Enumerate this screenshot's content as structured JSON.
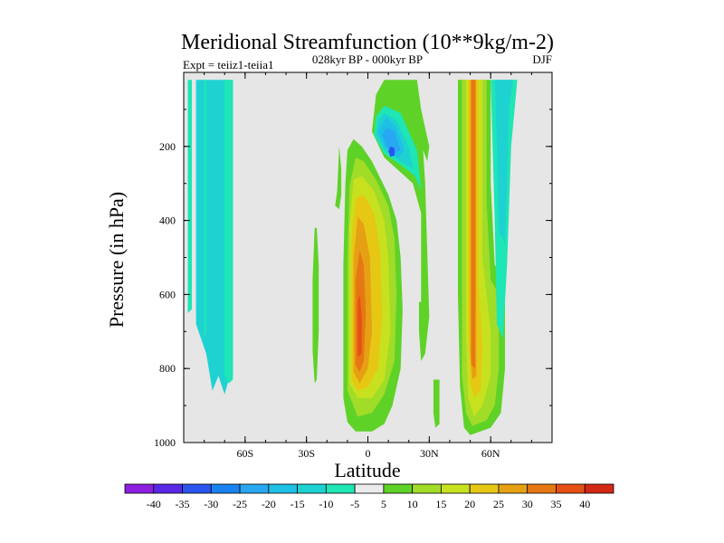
{
  "chart_data": {
    "type": "contour",
    "title": "Meridional Streamfunction (10**9kg/m-2)",
    "subtitle_left": "Expt = teiiz1-teiia1",
    "subtitle_center": "028kyr BP - 000kyr BP",
    "subtitle_right": "DJF",
    "xlabel": "Latitude",
    "ylabel": "Pressure (in hPa)",
    "xlim": [
      -90,
      90
    ],
    "ylim": [
      1000,
      0
    ],
    "y_inverted": true,
    "x_ticks": [
      {
        "value": -60,
        "label": "60S"
      },
      {
        "value": -30,
        "label": "30S"
      },
      {
        "value": 0,
        "label": "0"
      },
      {
        "value": 30,
        "label": "30N"
      },
      {
        "value": 60,
        "label": "60N"
      }
    ],
    "y_ticks": [
      {
        "value": 200,
        "label": "200"
      },
      {
        "value": 400,
        "label": "400"
      },
      {
        "value": 600,
        "label": "600"
      },
      {
        "value": 800,
        "label": "800"
      },
      {
        "value": 1000,
        "label": "1000"
      }
    ],
    "background_color": "#e6e6e6",
    "colorbar": {
      "labels": [
        "-40",
        "-35",
        "-30",
        "-25",
        "-20",
        "-15",
        "-10",
        "-5",
        "5",
        "10",
        "15",
        "20",
        "25",
        "30",
        "35",
        "40"
      ],
      "colors": [
        "#8c1fe0",
        "#5a28e6",
        "#2a55f0",
        "#1a82f0",
        "#28a8f0",
        "#1ec0e6",
        "#1ed2d2",
        "#1ee6b4",
        "#ebebeb",
        "#5fd228",
        "#a0dc28",
        "#c8e11e",
        "#e6c814",
        "#e6a014",
        "#e67814",
        "#e65014",
        "#d22814"
      ]
    },
    "regions": [
      {
        "name": "sh-polar-neg-band",
        "color": "#1ed2d2",
        "points": [
          [
            -88,
            20
          ],
          [
            -84,
            20
          ],
          [
            -84,
            680
          ],
          [
            -79,
            760
          ],
          [
            -76,
            860
          ],
          [
            -73,
            820
          ],
          [
            -70,
            870
          ],
          [
            -68,
            830
          ],
          [
            -66,
            820
          ],
          [
            -66,
            20
          ],
          [
            -88,
            20
          ]
        ]
      },
      {
        "name": "sh-polar-teal-edge",
        "color": "#1ee6b4",
        "points": [
          [
            -88,
            20
          ],
          [
            -86,
            20
          ],
          [
            -86,
            640
          ],
          [
            -88,
            650
          ]
        ]
      },
      {
        "name": "sh-polar-teal-east",
        "color": "#1ee6b4",
        "points": [
          [
            -70,
            20
          ],
          [
            -66,
            20
          ],
          [
            -66,
            830
          ],
          [
            -68,
            840
          ],
          [
            -70,
            820
          ]
        ]
      },
      {
        "name": "sh-polar-teal-mid",
        "color": "#1ee6b4",
        "points": [
          [
            -80,
            20
          ],
          [
            -79,
            20
          ],
          [
            -79,
            700
          ],
          [
            -80,
            720
          ]
        ]
      },
      {
        "name": "ns-green-left",
        "color": "#5fd228",
        "points": [
          [
            -27,
            750
          ],
          [
            -27,
            560
          ],
          [
            -26,
            420
          ],
          [
            -25,
            420
          ],
          [
            -24,
            520
          ],
          [
            -24,
            700
          ],
          [
            -25,
            830
          ],
          [
            -26,
            840
          ]
        ]
      },
      {
        "name": "ns-green-mid",
        "color": "#5fd228",
        "points": [
          [
            -16,
            360
          ],
          [
            -15,
            320
          ],
          [
            -14,
            200
          ],
          [
            -13,
            260
          ],
          [
            -13,
            330
          ],
          [
            -14,
            370
          ]
        ]
      },
      {
        "name": "tropical-pos-10",
        "color": "#5fd228",
        "points": [
          [
            -12,
            880
          ],
          [
            -12,
            520
          ],
          [
            -11,
            300
          ],
          [
            -10,
            210
          ],
          [
            -7,
            180
          ],
          [
            -3,
            200
          ],
          [
            2,
            240
          ],
          [
            10,
            330
          ],
          [
            14,
            400
          ],
          [
            16,
            500
          ],
          [
            17,
            640
          ],
          [
            16,
            800
          ],
          [
            12,
            900
          ],
          [
            8,
            950
          ],
          [
            2,
            970
          ],
          [
            -6,
            970
          ],
          [
            -10,
            945
          ]
        ]
      },
      {
        "name": "tropical-pos-15",
        "color": "#a0dc28",
        "points": [
          [
            -10,
            860
          ],
          [
            -10,
            520
          ],
          [
            -9,
            310
          ],
          [
            -6,
            230
          ],
          [
            -2,
            240
          ],
          [
            4,
            290
          ],
          [
            10,
            360
          ],
          [
            13,
            450
          ],
          [
            14,
            600
          ],
          [
            13,
            780
          ],
          [
            8,
            870
          ],
          [
            2,
            920
          ],
          [
            -5,
            930
          ]
        ]
      },
      {
        "name": "tropical-pos-20",
        "color": "#c8e11e",
        "points": [
          [
            -9,
            840
          ],
          [
            -9,
            420
          ],
          [
            -7,
            290
          ],
          [
            -3,
            280
          ],
          [
            3,
            320
          ],
          [
            8,
            400
          ],
          [
            10,
            500
          ],
          [
            11,
            700
          ],
          [
            8,
            830
          ],
          [
            2,
            880
          ],
          [
            -5,
            880
          ]
        ]
      },
      {
        "name": "tropical-pos-25",
        "color": "#e6c814",
        "points": [
          [
            -8,
            830
          ],
          [
            -8,
            450
          ],
          [
            -6,
            340
          ],
          [
            -2,
            330
          ],
          [
            3,
            380
          ],
          [
            6,
            480
          ],
          [
            7,
            660
          ],
          [
            5,
            800
          ],
          [
            0,
            850
          ],
          [
            -5,
            860
          ]
        ]
      },
      {
        "name": "tropical-pos-30",
        "color": "#e6a014",
        "points": [
          [
            -7,
            810
          ],
          [
            -7,
            500
          ],
          [
            -5,
            390
          ],
          [
            -2,
            410
          ],
          [
            1,
            500
          ],
          [
            2,
            700
          ],
          [
            0,
            800
          ],
          [
            -4,
            840
          ]
        ]
      },
      {
        "name": "tropical-pos-35",
        "color": "#e67814",
        "points": [
          [
            -6,
            790
          ],
          [
            -6,
            560
          ],
          [
            -4,
            480
          ],
          [
            -2,
            520
          ],
          [
            -1,
            650
          ],
          [
            -2,
            780
          ],
          [
            -4,
            810
          ]
        ]
      },
      {
        "name": "tropical-pos-40",
        "color": "#e65014",
        "points": [
          [
            -5,
            770
          ],
          [
            -5,
            620
          ],
          [
            -4,
            600
          ],
          [
            -3,
            660
          ],
          [
            -3,
            760
          ]
        ]
      },
      {
        "name": "nh-upper-green",
        "color": "#5fd228",
        "points": [
          [
            12,
            20
          ],
          [
            20,
            20
          ],
          [
            26,
            120
          ],
          [
            28,
            300
          ],
          [
            30,
            660
          ],
          [
            28,
            760
          ],
          [
            26,
            700
          ],
          [
            26,
            380
          ],
          [
            22,
            300
          ],
          [
            18,
            280
          ],
          [
            8,
            230
          ],
          [
            2,
            160
          ],
          [
            4,
            60
          ],
          [
            8,
            20
          ]
        ]
      },
      {
        "name": "nh-upper-neg-5",
        "color": "#1ee6b4",
        "points": [
          [
            8,
            90
          ],
          [
            16,
            110
          ],
          [
            24,
            210
          ],
          [
            26,
            320
          ],
          [
            23,
            280
          ],
          [
            16,
            250
          ],
          [
            8,
            220
          ],
          [
            3,
            170
          ],
          [
            4,
            120
          ]
        ]
      },
      {
        "name": "nh-upper-neg-10",
        "color": "#1ed2d2",
        "points": [
          [
            8,
            110
          ],
          [
            14,
            130
          ],
          [
            20,
            200
          ],
          [
            22,
            260
          ],
          [
            16,
            240
          ],
          [
            8,
            210
          ],
          [
            4,
            170
          ],
          [
            5,
            130
          ]
        ]
      },
      {
        "name": "nh-upper-neg-15",
        "color": "#1ec0e6",
        "points": [
          [
            9,
            120
          ],
          [
            14,
            150
          ],
          [
            18,
            210
          ],
          [
            15,
            230
          ],
          [
            8,
            200
          ],
          [
            5,
            160
          ]
        ]
      },
      {
        "name": "nh-upper-neg-20",
        "color": "#28a8f0",
        "points": [
          [
            9,
            150
          ],
          [
            13,
            160
          ],
          [
            16,
            210
          ],
          [
            13,
            220
          ],
          [
            9,
            200
          ],
          [
            7,
            170
          ]
        ]
      },
      {
        "name": "nh-upper-neg-25",
        "color": "#2a55f0",
        "points": [
          [
            11,
            200
          ],
          [
            13,
            205
          ],
          [
            13,
            225
          ],
          [
            11,
            228
          ],
          [
            10,
            213
          ]
        ]
      },
      {
        "name": "nh-small-green",
        "color": "#5fd228",
        "points": [
          [
            20,
            20
          ],
          [
            24,
            20
          ],
          [
            26,
            100
          ],
          [
            30,
            200
          ],
          [
            29,
            240
          ],
          [
            25,
            180
          ],
          [
            22,
            100
          ]
        ]
      },
      {
        "name": "nh-green-low",
        "color": "#5fd228",
        "points": [
          [
            32,
            830
          ],
          [
            35,
            830
          ],
          [
            35,
            950
          ],
          [
            33,
            960
          ],
          [
            32,
            920
          ]
        ]
      },
      {
        "name": "nh-green-mid",
        "color": "#5fd228",
        "points": [
          [
            25,
            620
          ],
          [
            28,
            620
          ],
          [
            28,
            760
          ],
          [
            26,
            780
          ],
          [
            25,
            700
          ]
        ]
      },
      {
        "name": "nh-jet-pos-10",
        "color": "#5fd228",
        "points": [
          [
            44,
            20
          ],
          [
            60,
            20
          ],
          [
            60,
            300
          ],
          [
            62,
            520
          ],
          [
            67,
            560
          ],
          [
            67,
            800
          ],
          [
            65,
            920
          ],
          [
            60,
            960
          ],
          [
            50,
            980
          ],
          [
            47,
            960
          ],
          [
            45,
            850
          ],
          [
            44,
            600
          ],
          [
            44,
            300
          ]
        ]
      },
      {
        "name": "nh-jet-pos-15",
        "color": "#a0dc28",
        "points": [
          [
            46,
            20
          ],
          [
            58,
            20
          ],
          [
            58,
            350
          ],
          [
            60,
            560
          ],
          [
            64,
            600
          ],
          [
            64,
            800
          ],
          [
            62,
            900
          ],
          [
            58,
            940
          ],
          [
            51,
            955
          ],
          [
            48,
            920
          ],
          [
            46,
            820
          ],
          [
            46,
            500
          ]
        ]
      },
      {
        "name": "nh-jet-pos-20",
        "color": "#c8e11e",
        "points": [
          [
            48,
            20
          ],
          [
            56,
            20
          ],
          [
            56,
            500
          ],
          [
            60,
            700
          ],
          [
            60,
            820
          ],
          [
            56,
            900
          ],
          [
            52,
            930
          ],
          [
            49,
            880
          ],
          [
            48,
            700
          ]
        ]
      },
      {
        "name": "nh-jet-pos-25",
        "color": "#e6c814",
        "points": [
          [
            49,
            20
          ],
          [
            54,
            20
          ],
          [
            54,
            560
          ],
          [
            56,
            740
          ],
          [
            55,
            860
          ],
          [
            52,
            880
          ],
          [
            50,
            840
          ],
          [
            49,
            650
          ]
        ]
      },
      {
        "name": "nh-jet-pos-30",
        "color": "#e6a014",
        "points": [
          [
            50,
            20
          ],
          [
            53,
            20
          ],
          [
            53,
            820
          ],
          [
            51,
            830
          ],
          [
            50,
            760
          ]
        ]
      },
      {
        "name": "nh-jet-pos-35",
        "color": "#e67814",
        "points": [
          [
            50.5,
            20
          ],
          [
            52.5,
            20
          ],
          [
            52.5,
            800
          ],
          [
            50.5,
            790
          ]
        ]
      },
      {
        "name": "nh-arctic-neg-5",
        "color": "#1ee6b4",
        "points": [
          [
            60,
            20
          ],
          [
            73,
            20
          ],
          [
            70,
            200
          ],
          [
            68,
            520
          ],
          [
            66,
            720
          ],
          [
            63,
            680
          ],
          [
            62,
            400
          ]
        ]
      },
      {
        "name": "nh-arctic-neg-10",
        "color": "#1ed2d2",
        "points": [
          [
            62,
            20
          ],
          [
            71,
            20
          ],
          [
            69,
            100
          ],
          [
            68,
            300
          ],
          [
            67,
            460
          ],
          [
            64,
            430
          ],
          [
            63,
            200
          ]
        ]
      }
    ]
  }
}
